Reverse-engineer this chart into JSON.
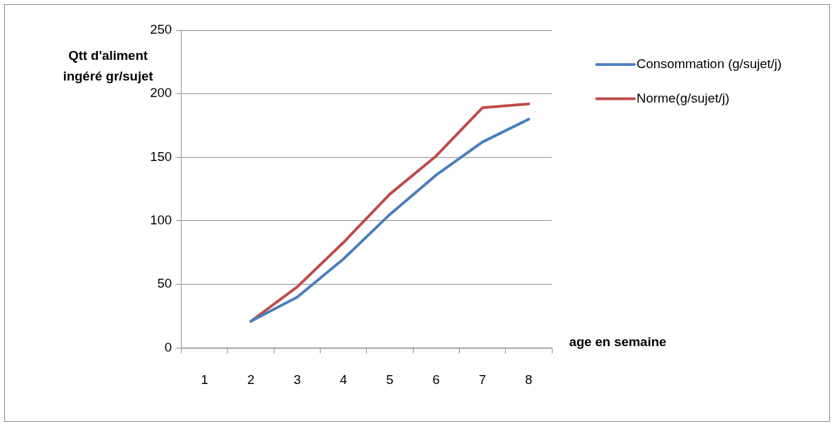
{
  "chart_data": {
    "type": "line",
    "xlabel": "age en semaine",
    "ylabel": "Qtt d'aliment ingéré gr/sujet",
    "categories": [
      "1",
      "2",
      "3",
      "4",
      "5",
      "6",
      "7",
      "8"
    ],
    "series": [
      {
        "name": "Consommation (g/sujet/j)",
        "color": "#4a7ebb",
        "values": [
          null,
          21,
          40,
          70,
          105,
          136,
          162,
          180
        ]
      },
      {
        "name": "Norme(g/sujet/j)",
        "color": "#be4b48",
        "values": [
          null,
          21,
          48,
          83,
          121,
          151,
          189,
          192
        ]
      }
    ],
    "ylim": [
      0,
      250
    ],
    "yticks": [
      0,
      50,
      100,
      150,
      200,
      250
    ],
    "grid": "y",
    "legend": "right",
    "marker": "none",
    "line_style": "solid"
  }
}
